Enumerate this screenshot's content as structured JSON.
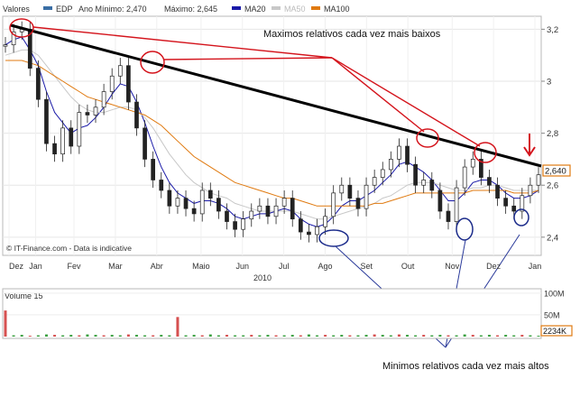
{
  "header": {
    "label": "Valores",
    "legend": [
      {
        "name": "EDP",
        "color": "#3a6ea5"
      },
      {
        "name": "Ano Mínimo: 2,470",
        "color": null
      },
      {
        "name": "Máximo: 2,645",
        "color": null
      },
      {
        "name": "MA20",
        "color": "#1a1aa8"
      },
      {
        "name": "MA50",
        "color": "#c8c8c8"
      },
      {
        "name": "MA100",
        "color": "#e07a10"
      }
    ]
  },
  "annotations": {
    "top_note": "Maximos relativos cada vez mais baixos",
    "bottom_note": "Minimos relativos cada vez mais altos",
    "source": "© IT-Finance.com - Data is indicative"
  },
  "chart_data": [
    {
      "type": "candlestick",
      "title": "",
      "xlabel": "2010",
      "ylabel": "",
      "x_ticks": [
        "Dez",
        "Jan",
        "Fev",
        "Mar",
        "Abr",
        "Maio",
        "Jun",
        "Jul",
        "Ago",
        "Set",
        "Out",
        "Nov",
        "Dez",
        "Jan"
      ],
      "y_ticks": [
        "2,4",
        "2,6",
        "2,8",
        "3",
        "3,2"
      ],
      "ylim": [
        2.33,
        3.25
      ],
      "last_price": "2,640",
      "grid": true,
      "series": [
        {
          "name": "EDP",
          "color": "#3a6ea5",
          "x": [
            0,
            2,
            4,
            6,
            8,
            10,
            12,
            14,
            16,
            18,
            20,
            22,
            24,
            26,
            28,
            30,
            32,
            34,
            36,
            38,
            40,
            42,
            44,
            46,
            48,
            50,
            52,
            54,
            56,
            58,
            60,
            62,
            64,
            66,
            68,
            70,
            72,
            74,
            76,
            78,
            80,
            82,
            84,
            86,
            88,
            90,
            92,
            94,
            96,
            98,
            100,
            102,
            104,
            106,
            108,
            110,
            112,
            114,
            116,
            118,
            120,
            122,
            124,
            126,
            128,
            130
          ],
          "y": [
            3.14,
            3.19,
            3.2,
            3.05,
            2.93,
            2.76,
            2.72,
            2.82,
            2.75,
            2.88,
            2.87,
            2.9,
            2.96,
            3.02,
            3.06,
            2.92,
            2.82,
            2.7,
            2.62,
            2.58,
            2.52,
            2.55,
            2.51,
            2.49,
            2.58,
            2.55,
            2.5,
            2.46,
            2.43,
            2.47,
            2.5,
            2.52,
            2.48,
            2.52,
            2.55,
            2.47,
            2.42,
            2.41,
            2.44,
            2.48,
            2.57,
            2.6,
            2.55,
            2.51,
            2.6,
            2.63,
            2.66,
            2.7,
            2.75,
            2.68,
            2.6,
            2.62,
            2.58,
            2.5,
            2.46,
            2.59,
            2.67,
            2.7,
            2.63,
            2.6,
            2.55,
            2.52,
            2.5,
            2.56,
            2.6,
            2.64
          ]
        }
      ],
      "overlays": [
        {
          "name": "MA20",
          "color": "#1a1aa8",
          "y": [
            3.14,
            3.16,
            3.17,
            3.12,
            3.06,
            2.96,
            2.88,
            2.84,
            2.8,
            2.82,
            2.83,
            2.86,
            2.9,
            2.95,
            2.99,
            2.98,
            2.92,
            2.84,
            2.75,
            2.67,
            2.61,
            2.57,
            2.55,
            2.53,
            2.54,
            2.54,
            2.53,
            2.51,
            2.48,
            2.47,
            2.48,
            2.49,
            2.49,
            2.5,
            2.51,
            2.5,
            2.47,
            2.45,
            2.44,
            2.45,
            2.48,
            2.52,
            2.54,
            2.54,
            2.56,
            2.58,
            2.61,
            2.64,
            2.68,
            2.69,
            2.67,
            2.65,
            2.62,
            2.58,
            2.54,
            2.54,
            2.57,
            2.61,
            2.62,
            2.62,
            2.6,
            2.57,
            2.55,
            2.55,
            2.56,
            2.58
          ]
        },
        {
          "name": "MA50",
          "color": "#c8c8c8",
          "y": [
            3.1,
            3.11,
            3.12,
            3.12,
            3.1,
            3.06,
            3.02,
            2.98,
            2.94,
            2.91,
            2.89,
            2.88,
            2.88,
            2.89,
            2.9,
            2.9,
            2.89,
            2.86,
            2.82,
            2.77,
            2.72,
            2.68,
            2.64,
            2.61,
            2.59,
            2.57,
            2.56,
            2.55,
            2.53,
            2.52,
            2.51,
            2.5,
            2.5,
            2.5,
            2.5,
            2.5,
            2.49,
            2.48,
            2.47,
            2.47,
            2.48,
            2.49,
            2.5,
            2.51,
            2.52,
            2.53,
            2.55,
            2.56,
            2.58,
            2.6,
            2.61,
            2.61,
            2.61,
            2.6,
            2.59,
            2.58,
            2.58,
            2.59,
            2.59,
            2.6,
            2.6,
            2.59,
            2.58,
            2.58,
            2.58,
            2.58
          ]
        },
        {
          "name": "MA100",
          "color": "#e07a10",
          "y": [
            3.08,
            3.08,
            3.08,
            3.07,
            3.06,
            3.04,
            3.02,
            3.0,
            2.98,
            2.96,
            2.94,
            2.93,
            2.92,
            2.91,
            2.9,
            2.89,
            2.88,
            2.87,
            2.85,
            2.83,
            2.8,
            2.77,
            2.74,
            2.71,
            2.69,
            2.67,
            2.65,
            2.63,
            2.61,
            2.6,
            2.59,
            2.58,
            2.57,
            2.56,
            2.55,
            2.55,
            2.54,
            2.53,
            2.52,
            2.52,
            2.52,
            2.52,
            2.52,
            2.52,
            2.52,
            2.53,
            2.53,
            2.54,
            2.55,
            2.56,
            2.57,
            2.57,
            2.57,
            2.57,
            2.57,
            2.57,
            2.57,
            2.58,
            2.58,
            2.58,
            2.58,
            2.58,
            2.57,
            2.57,
            2.57,
            2.58
          ]
        }
      ]
    },
    {
      "type": "bar",
      "title": "Volume 15",
      "y_ticks": [
        "100M",
        "50M"
      ],
      "last_value": "2234K",
      "ylim": [
        0,
        110
      ],
      "values": [
        60,
        3,
        4,
        2,
        3,
        5,
        4,
        3,
        4,
        3,
        5,
        4,
        3,
        4,
        3,
        5,
        4,
        3,
        3,
        4,
        3,
        45,
        3,
        4,
        3,
        5,
        3,
        4,
        3,
        3,
        4,
        3,
        4,
        3,
        3,
        4,
        3,
        5,
        3,
        4,
        3,
        4,
        3,
        3,
        4,
        5,
        4,
        3,
        5,
        4,
        3,
        4,
        3,
        4,
        3,
        3,
        5,
        4,
        3,
        4,
        3,
        4,
        3,
        4,
        3,
        2
      ]
    }
  ]
}
